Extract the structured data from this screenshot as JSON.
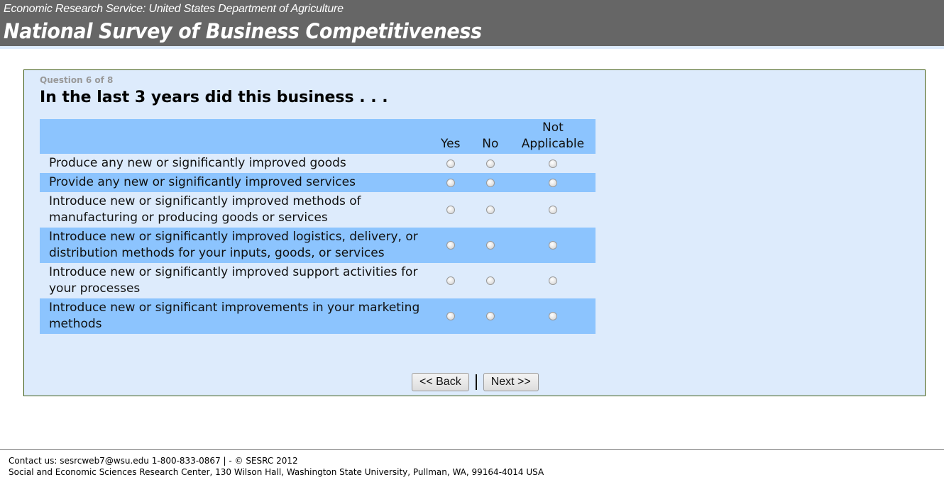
{
  "header": {
    "subtitle": "Economic Research Service: United States Department of Agriculture",
    "title": "National Survey of Business Competitiveness"
  },
  "question": {
    "number": "Question 6 of 8",
    "text": "In the last 3 years did this business . . .",
    "columns": [
      "Yes",
      "No",
      "Not Applicable"
    ],
    "rows": [
      {
        "label": "Produce any new or significantly improved goods"
      },
      {
        "label": "Provide any new or significantly improved services"
      },
      {
        "label": "Introduce new or significantly improved methods of manufacturing or producing goods or services"
      },
      {
        "label": "Introduce new or significantly improved logistics, delivery, or distribution methods for your inputs, goods, or services"
      },
      {
        "label": "Introduce new or significantly improved support activities for your processes"
      },
      {
        "label": "Introduce new or significant improvements  in your marketing methods"
      }
    ]
  },
  "nav": {
    "back": "<< Back",
    "next": "Next >>"
  },
  "footer": {
    "line1": "Contact us: sesrcweb7@wsu.edu 1-800-833-0867 | - © SESRC 2012",
    "line2": "Social and Economic Sciences Research Center, 130 Wilson Hall, Washington State University, Pullman, WA, 99164-4014 USA"
  },
  "colors": {
    "header_bg": "#666666",
    "panel_bg": "#ddebfc",
    "row_highlight": "#8cc4fe"
  }
}
